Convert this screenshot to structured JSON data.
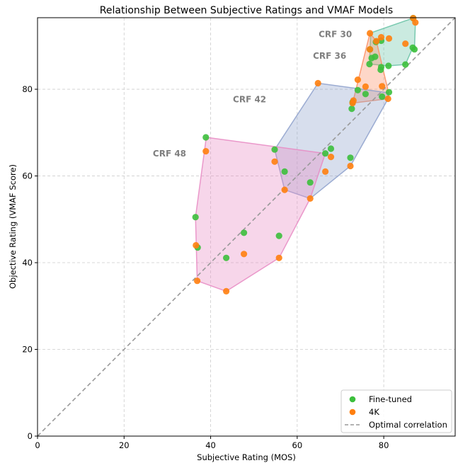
{
  "chart_data": {
    "type": "scatter",
    "title": "Relationship Between Subjective Ratings and VMAF Models",
    "xlabel": "Subjective Rating (MOS)",
    "ylabel": "Objective Rating (VMAF Score)",
    "xlim": [
      0,
      96.5
    ],
    "ylim": [
      0,
      96.5
    ],
    "xticks": [
      "0",
      "20",
      "40",
      "60",
      "80"
    ],
    "yticks": [
      "0",
      "20",
      "40",
      "60",
      "80"
    ],
    "grid": true,
    "legend_position": "bottom-right",
    "series": [
      {
        "name": "Fine-tuned",
        "color": "#3cbf3c",
        "points": [
          [
            38.9,
            68.9
          ],
          [
            36.5,
            50.5
          ],
          [
            37.0,
            43.5
          ],
          [
            47.7,
            46.9
          ],
          [
            43.6,
            41.1
          ],
          [
            55.8,
            46.2
          ],
          [
            54.8,
            66.1
          ],
          [
            57.1,
            61.0
          ],
          [
            63.0,
            58.5
          ],
          [
            66.5,
            65.2
          ],
          [
            67.8,
            66.3
          ],
          [
            72.3,
            64.2
          ],
          [
            72.6,
            75.5
          ],
          [
            72.8,
            77.0
          ],
          [
            74.0,
            79.8
          ],
          [
            75.8,
            78.9
          ],
          [
            79.6,
            78.3
          ],
          [
            81.2,
            79.3
          ],
          [
            76.7,
            85.8
          ],
          [
            77.2,
            87.2
          ],
          [
            78.0,
            87.5
          ],
          [
            79.3,
            84.5
          ],
          [
            79.4,
            85.1
          ],
          [
            81.1,
            85.4
          ],
          [
            85.0,
            85.7
          ],
          [
            76.8,
            89.2
          ],
          [
            78.2,
            90.9
          ],
          [
            79.4,
            91.2
          ],
          [
            86.7,
            89.6
          ],
          [
            87.1,
            89.2
          ],
          [
            86.8,
            96.4
          ]
        ]
      },
      {
        "name": "4K",
        "color": "#ff7f0e",
        "points": [
          [
            38.9,
            65.7
          ],
          [
            36.6,
            44.0
          ],
          [
            36.9,
            35.8
          ],
          [
            47.7,
            42.0
          ],
          [
            43.6,
            33.4
          ],
          [
            55.8,
            41.1
          ],
          [
            54.8,
            63.3
          ],
          [
            57.1,
            56.8
          ],
          [
            63.0,
            54.8
          ],
          [
            66.5,
            61.0
          ],
          [
            67.8,
            64.4
          ],
          [
            72.3,
            62.3
          ],
          [
            64.8,
            81.4
          ],
          [
            72.8,
            76.8
          ],
          [
            73.0,
            77.4
          ],
          [
            74.0,
            82.2
          ],
          [
            75.8,
            80.6
          ],
          [
            79.6,
            80.7
          ],
          [
            81.0,
            77.8
          ],
          [
            76.8,
            92.9
          ],
          [
            76.8,
            89.2
          ],
          [
            78.3,
            91.1
          ],
          [
            79.4,
            92.0
          ],
          [
            81.2,
            91.7
          ],
          [
            85.0,
            90.5
          ],
          [
            86.8,
            96.4
          ],
          [
            87.3,
            95.4
          ]
        ]
      }
    ],
    "regions": [
      {
        "label": "CRF 30",
        "fill": "#66c2a5",
        "polygon": [
          [
            76.7,
            85.8
          ],
          [
            77.0,
            93.0
          ],
          [
            86.8,
            96.4
          ],
          [
            87.3,
            95.4
          ],
          [
            87.1,
            89.2
          ],
          [
            86.7,
            89.6
          ],
          [
            85.0,
            85.7
          ],
          [
            81.1,
            85.4
          ]
        ]
      },
      {
        "label": "CRF 36",
        "fill": "#fc8d62",
        "polygon": [
          [
            72.8,
            76.8
          ],
          [
            76.8,
            92.9
          ],
          [
            78.3,
            91.1
          ],
          [
            81.1,
            79.3
          ],
          [
            81.0,
            77.8
          ]
        ]
      },
      {
        "label": "CRF 42",
        "fill": "#8da0cb",
        "polygon": [
          [
            64.8,
            81.4
          ],
          [
            81.0,
            79.2
          ],
          [
            81.0,
            77.8
          ],
          [
            72.3,
            62.3
          ],
          [
            63.0,
            54.8
          ],
          [
            57.1,
            56.8
          ],
          [
            54.8,
            66.1
          ]
        ]
      },
      {
        "label": "CRF 48",
        "fill": "#e78ac3",
        "polygon": [
          [
            39.0,
            68.9
          ],
          [
            66.5,
            65.2
          ],
          [
            63.0,
            54.8
          ],
          [
            55.8,
            41.1
          ],
          [
            43.6,
            33.4
          ],
          [
            36.9,
            35.8
          ],
          [
            36.5,
            50.5
          ]
        ]
      }
    ],
    "reference_line": {
      "name": "Optimal correlation",
      "from": [
        0,
        0
      ],
      "to": [
        96.5,
        96.5
      ],
      "color": "#999999",
      "style": "dashed"
    }
  }
}
